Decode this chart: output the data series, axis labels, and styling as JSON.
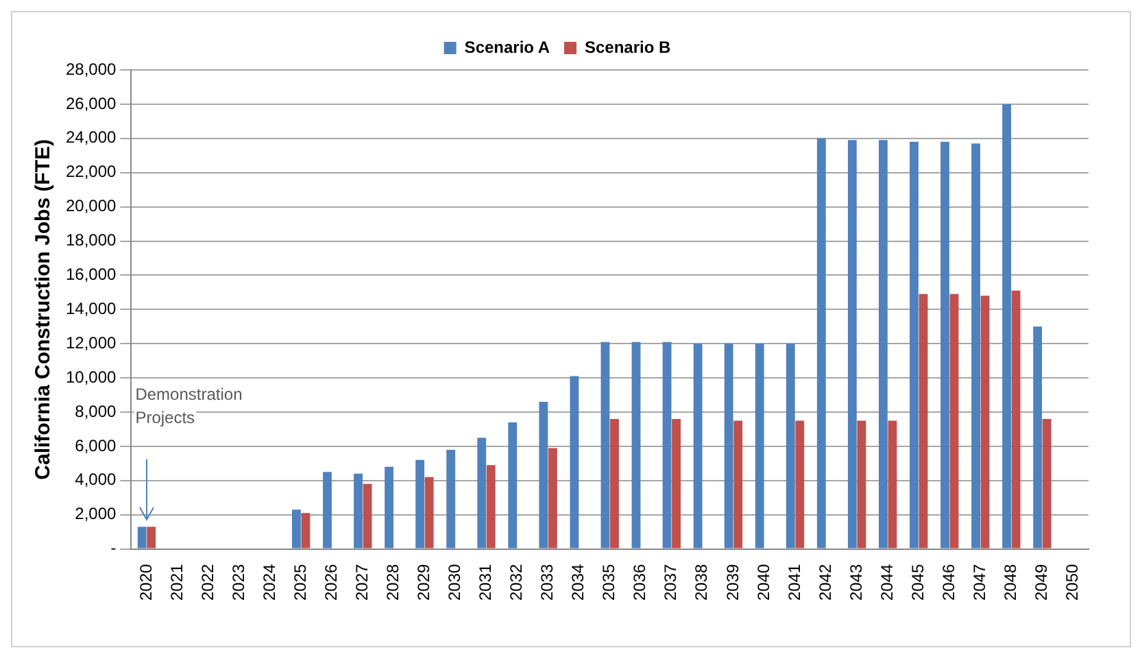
{
  "chart_data": {
    "type": "bar",
    "ylabel": "California Construction Jobs (FTE)",
    "categories": [
      "2020",
      "2021",
      "2022",
      "2023",
      "2024",
      "2025",
      "2026",
      "2027",
      "2028",
      "2029",
      "2030",
      "2031",
      "2032",
      "2033",
      "2034",
      "2035",
      "2036",
      "2037",
      "2038",
      "2039",
      "2040",
      "2041",
      "2042",
      "2043",
      "2044",
      "2045",
      "2046",
      "2047",
      "2048",
      "2049",
      "2050"
    ],
    "series": [
      {
        "name": "Scenario A",
        "color": "#4f81bd",
        "values": [
          1300,
          null,
          null,
          null,
          null,
          2300,
          4500,
          4400,
          4800,
          5200,
          5800,
          6500,
          7400,
          8600,
          10100,
          12100,
          12100,
          12100,
          12000,
          12000,
          12000,
          12000,
          24000,
          23900,
          23900,
          23800,
          23800,
          23700,
          26000,
          13000,
          null
        ]
      },
      {
        "name": "Scenario B",
        "color": "#c0504d",
        "values": [
          1300,
          null,
          null,
          null,
          null,
          2100,
          null,
          3800,
          null,
          4200,
          null,
          4900,
          null,
          5900,
          null,
          7600,
          null,
          7600,
          null,
          7500,
          null,
          7500,
          null,
          7500,
          7500,
          14900,
          14900,
          14800,
          15100,
          7600,
          null
        ]
      }
    ],
    "ylim": [
      0,
      28000
    ],
    "yticks": [
      {
        "value": 0,
        "label": "-"
      },
      {
        "value": 2000,
        "label": "2,000"
      },
      {
        "value": 4000,
        "label": "4,000"
      },
      {
        "value": 6000,
        "label": "6,000"
      },
      {
        "value": 8000,
        "label": "8,000"
      },
      {
        "value": 10000,
        "label": "10,000"
      },
      {
        "value": 12000,
        "label": "12,000"
      },
      {
        "value": 14000,
        "label": "14,000"
      },
      {
        "value": 16000,
        "label": "16,000"
      },
      {
        "value": 18000,
        "label": "18,000"
      },
      {
        "value": 20000,
        "label": "20,000"
      },
      {
        "value": 22000,
        "label": "22,000"
      },
      {
        "value": 24000,
        "label": "24,000"
      },
      {
        "value": 26000,
        "label": "26,000"
      },
      {
        "value": 28000,
        "label": "28,000"
      }
    ],
    "grid": "y",
    "legend": "top",
    "annotations": [
      "Demonstration Projects"
    ]
  }
}
